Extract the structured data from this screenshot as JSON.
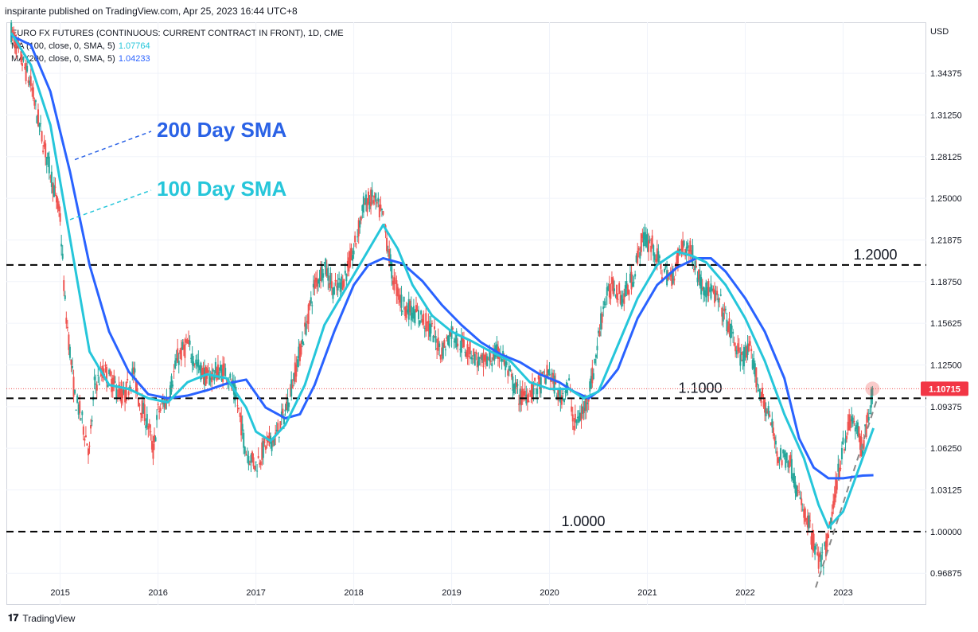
{
  "header": {
    "published": "inspirante published on TradingView.com, Apr 25, 2023 16:44 UTC+8"
  },
  "legend": {
    "title": "EURO FX FUTURES (CONTINUOUS: CURRENT CONTRACT IN FRONT), 1D, CME",
    "ma100_label": "MA (100, close, 0, SMA, 5)",
    "ma100_value": "1.07764",
    "ma200_label": "MA (200, close, 0, SMA, 5)",
    "ma200_value": "1.04233"
  },
  "currency": "USD",
  "footer": {
    "brand": "TradingView"
  },
  "colors": {
    "up": "#26a69a",
    "down": "#ef5350",
    "ma100": "#26c6da",
    "ma200": "#2962ff",
    "annot200": "#2a62e6",
    "annot100": "#26c6da",
    "last_price_bg": "#f23645"
  },
  "chart_data": {
    "type": "candlestick",
    "symbol": "EURO FX FUTURES (CONTINUOUS: CURRENT CONTRACT IN FRONT)",
    "interval": "1D",
    "x_ticks": [
      "2015",
      "2016",
      "2017",
      "2018",
      "2019",
      "2020",
      "2021",
      "2022",
      "2023"
    ],
    "y_ticks": [
      "1.34375",
      "1.31250",
      "1.28125",
      "1.25000",
      "1.21875",
      "1.18750",
      "1.15625",
      "1.12500",
      "1.09375",
      "1.06250",
      "1.03125",
      "1.00000",
      "0.96875"
    ],
    "y_range": [
      0.945,
      1.382
    ],
    "x_range": [
      2014.45,
      2023.85
    ],
    "last_price": "1.10715",
    "price_path": [
      [
        2014.5,
        1.375
      ],
      [
        2014.6,
        1.355
      ],
      [
        2014.7,
        1.335
      ],
      [
        2014.8,
        1.3
      ],
      [
        2014.9,
        1.27
      ],
      [
        2015.0,
        1.235
      ],
      [
        2015.05,
        1.17
      ],
      [
        2015.15,
        1.1
      ],
      [
        2015.2,
        1.09
      ],
      [
        2015.3,
        1.06
      ],
      [
        2015.35,
        1.11
      ],
      [
        2015.45,
        1.12
      ],
      [
        2015.55,
        1.11
      ],
      [
        2015.65,
        1.1
      ],
      [
        2015.75,
        1.12
      ],
      [
        2015.8,
        1.1
      ],
      [
        2015.9,
        1.08
      ],
      [
        2015.95,
        1.06
      ],
      [
        2016.0,
        1.09
      ],
      [
        2016.1,
        1.1
      ],
      [
        2016.2,
        1.13
      ],
      [
        2016.3,
        1.14
      ],
      [
        2016.4,
        1.125
      ],
      [
        2016.5,
        1.115
      ],
      [
        2016.6,
        1.12
      ],
      [
        2016.7,
        1.12
      ],
      [
        2016.8,
        1.1
      ],
      [
        2016.9,
        1.06
      ],
      [
        2017.0,
        1.05
      ],
      [
        2017.1,
        1.065
      ],
      [
        2017.2,
        1.07
      ],
      [
        2017.3,
        1.09
      ],
      [
        2017.4,
        1.12
      ],
      [
        2017.5,
        1.15
      ],
      [
        2017.6,
        1.185
      ],
      [
        2017.7,
        1.2
      ],
      [
        2017.8,
        1.18
      ],
      [
        2017.9,
        1.19
      ],
      [
        2018.0,
        1.21
      ],
      [
        2018.1,
        1.245
      ],
      [
        2018.2,
        1.25
      ],
      [
        2018.3,
        1.235
      ],
      [
        2018.4,
        1.19
      ],
      [
        2018.5,
        1.17
      ],
      [
        2018.6,
        1.165
      ],
      [
        2018.7,
        1.16
      ],
      [
        2018.8,
        1.15
      ],
      [
        2018.9,
        1.135
      ],
      [
        2019.0,
        1.15
      ],
      [
        2019.1,
        1.14
      ],
      [
        2019.2,
        1.135
      ],
      [
        2019.3,
        1.125
      ],
      [
        2019.4,
        1.13
      ],
      [
        2019.5,
        1.135
      ],
      [
        2019.6,
        1.115
      ],
      [
        2019.7,
        1.1
      ],
      [
        2019.8,
        1.105
      ],
      [
        2019.9,
        1.11
      ],
      [
        2020.0,
        1.12
      ],
      [
        2020.1,
        1.1
      ],
      [
        2020.2,
        1.11
      ],
      [
        2020.25,
        1.08
      ],
      [
        2020.35,
        1.09
      ],
      [
        2020.45,
        1.12
      ],
      [
        2020.55,
        1.17
      ],
      [
        2020.65,
        1.185
      ],
      [
        2020.75,
        1.175
      ],
      [
        2020.85,
        1.19
      ],
      [
        2020.95,
        1.22
      ],
      [
        2021.05,
        1.215
      ],
      [
        2021.15,
        1.195
      ],
      [
        2021.25,
        1.19
      ],
      [
        2021.35,
        1.215
      ],
      [
        2021.45,
        1.21
      ],
      [
        2021.55,
        1.185
      ],
      [
        2021.65,
        1.18
      ],
      [
        2021.75,
        1.17
      ],
      [
        2021.85,
        1.15
      ],
      [
        2021.95,
        1.13
      ],
      [
        2022.05,
        1.135
      ],
      [
        2022.15,
        1.105
      ],
      [
        2022.25,
        1.085
      ],
      [
        2022.35,
        1.055
      ],
      [
        2022.45,
        1.055
      ],
      [
        2022.55,
        1.025
      ],
      [
        2022.65,
        1.005
      ],
      [
        2022.72,
        0.985
      ],
      [
        2022.78,
        0.975
      ],
      [
        2022.85,
        0.995
      ],
      [
        2022.92,
        1.03
      ],
      [
        2023.0,
        1.065
      ],
      [
        2023.08,
        1.085
      ],
      [
        2023.15,
        1.075
      ],
      [
        2023.2,
        1.06
      ],
      [
        2023.25,
        1.085
      ],
      [
        2023.31,
        1.107
      ]
    ],
    "ma100": [
      [
        2014.5,
        1.374
      ],
      [
        2014.7,
        1.35
      ],
      [
        2014.9,
        1.305
      ],
      [
        2015.1,
        1.22
      ],
      [
        2015.3,
        1.135
      ],
      [
        2015.5,
        1.11
      ],
      [
        2015.7,
        1.107
      ],
      [
        2015.9,
        1.1
      ],
      [
        2016.1,
        1.097
      ],
      [
        2016.3,
        1.112
      ],
      [
        2016.5,
        1.118
      ],
      [
        2016.7,
        1.115
      ],
      [
        2016.9,
        1.093
      ],
      [
        2017.0,
        1.075
      ],
      [
        2017.15,
        1.068
      ],
      [
        2017.3,
        1.08
      ],
      [
        2017.5,
        1.11
      ],
      [
        2017.7,
        1.155
      ],
      [
        2017.9,
        1.18
      ],
      [
        2018.1,
        1.205
      ],
      [
        2018.3,
        1.23
      ],
      [
        2018.45,
        1.212
      ],
      [
        2018.6,
        1.185
      ],
      [
        2018.8,
        1.162
      ],
      [
        2019.0,
        1.15
      ],
      [
        2019.2,
        1.143
      ],
      [
        2019.4,
        1.135
      ],
      [
        2019.6,
        1.128
      ],
      [
        2019.8,
        1.112
      ],
      [
        2020.0,
        1.107
      ],
      [
        2020.2,
        1.107
      ],
      [
        2020.35,
        1.1
      ],
      [
        2020.5,
        1.105
      ],
      [
        2020.7,
        1.14
      ],
      [
        2020.9,
        1.175
      ],
      [
        2021.1,
        1.2
      ],
      [
        2021.3,
        1.21
      ],
      [
        2021.45,
        1.207
      ],
      [
        2021.6,
        1.202
      ],
      [
        2021.8,
        1.185
      ],
      [
        2022.0,
        1.16
      ],
      [
        2022.2,
        1.128
      ],
      [
        2022.4,
        1.088
      ],
      [
        2022.6,
        1.055
      ],
      [
        2022.75,
        1.02
      ],
      [
        2022.85,
        1.003
      ],
      [
        2023.0,
        1.015
      ],
      [
        2023.15,
        1.045
      ],
      [
        2023.31,
        1.0776
      ]
    ],
    "ma200": [
      [
        2014.5,
        1.372
      ],
      [
        2014.7,
        1.365
      ],
      [
        2014.9,
        1.33
      ],
      [
        2015.1,
        1.27
      ],
      [
        2015.3,
        1.2
      ],
      [
        2015.5,
        1.15
      ],
      [
        2015.7,
        1.12
      ],
      [
        2015.9,
        1.103
      ],
      [
        2016.1,
        1.1
      ],
      [
        2016.3,
        1.102
      ],
      [
        2016.5,
        1.106
      ],
      [
        2016.7,
        1.111
      ],
      [
        2016.9,
        1.114
      ],
      [
        2017.1,
        1.093
      ],
      [
        2017.3,
        1.085
      ],
      [
        2017.45,
        1.088
      ],
      [
        2017.6,
        1.11
      ],
      [
        2017.8,
        1.15
      ],
      [
        2018.0,
        1.185
      ],
      [
        2018.15,
        1.2
      ],
      [
        2018.3,
        1.205
      ],
      [
        2018.5,
        1.201
      ],
      [
        2018.7,
        1.188
      ],
      [
        2018.9,
        1.17
      ],
      [
        2019.1,
        1.155
      ],
      [
        2019.3,
        1.142
      ],
      [
        2019.5,
        1.133
      ],
      [
        2019.7,
        1.127
      ],
      [
        2019.9,
        1.118
      ],
      [
        2020.1,
        1.112
      ],
      [
        2020.25,
        1.105
      ],
      [
        2020.4,
        1.1
      ],
      [
        2020.55,
        1.108
      ],
      [
        2020.7,
        1.122
      ],
      [
        2020.9,
        1.16
      ],
      [
        2021.1,
        1.185
      ],
      [
        2021.3,
        1.198
      ],
      [
        2021.5,
        1.205
      ],
      [
        2021.65,
        1.205
      ],
      [
        2021.8,
        1.195
      ],
      [
        2022.0,
        1.175
      ],
      [
        2022.2,
        1.15
      ],
      [
        2022.4,
        1.115
      ],
      [
        2022.55,
        1.07
      ],
      [
        2022.7,
        1.048
      ],
      [
        2022.85,
        1.04
      ],
      [
        2023.0,
        1.04
      ],
      [
        2023.2,
        1.042
      ],
      [
        2023.31,
        1.0423
      ]
    ],
    "horizontal_levels": [
      {
        "value": 1.2,
        "label": "1.2000"
      },
      {
        "value": 1.1,
        "label": "1.1000"
      },
      {
        "value": 1.0,
        "label": "1.0000"
      }
    ],
    "trendline": [
      [
        2022.72,
        0.958
      ],
      [
        2023.35,
        1.1
      ]
    ],
    "annotations": [
      {
        "text": "200 Day SMA",
        "target": "ma200"
      },
      {
        "text": "100 Day SMA",
        "target": "ma100"
      }
    ]
  }
}
